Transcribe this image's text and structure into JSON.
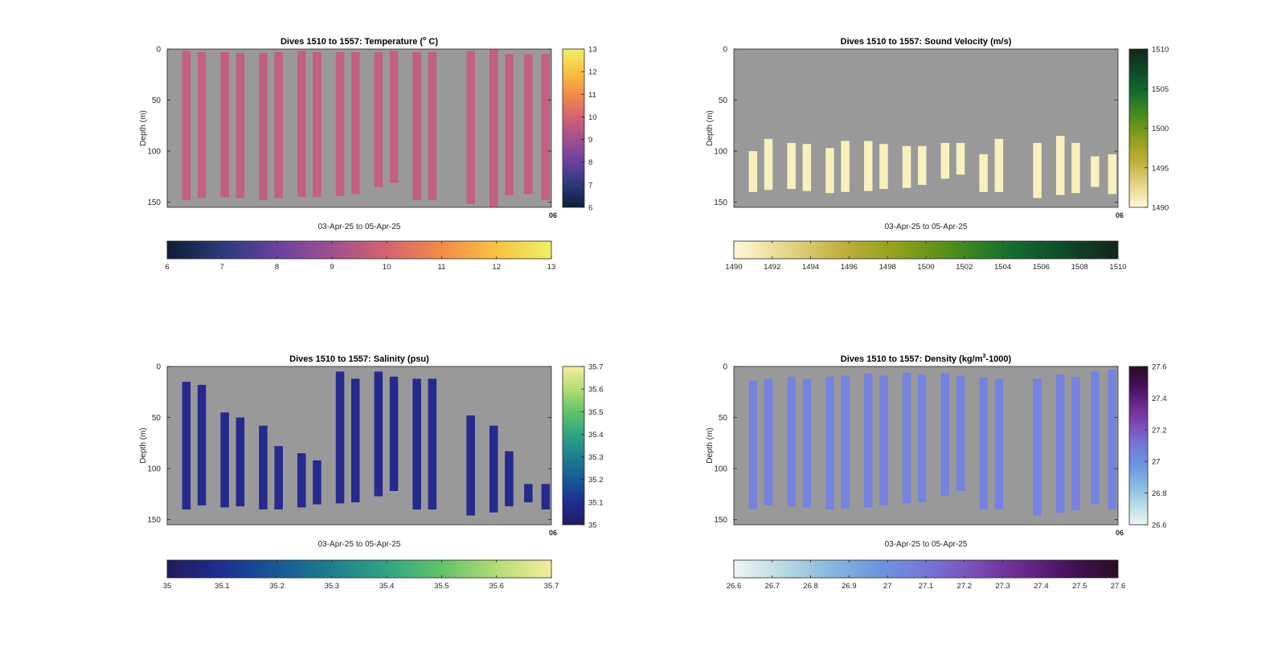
{
  "figure": {
    "background": "#ffffff",
    "axes_background": "#999999"
  },
  "chart_data": [
    {
      "type": "heatmap",
      "title": "Dives 1510 to 1557: Temperature (° C)",
      "title_parts": [
        "Dives 1510 to 1557: Temperature (",
        "o",
        " C)"
      ],
      "xlabel": "03-Apr-25 to 05-Apr-25",
      "ylabel": "Depth (m)",
      "x_tick_label": "06",
      "ylim": [
        0,
        155
      ],
      "y_ticks": [
        0,
        50,
        100,
        150
      ],
      "colorbar": {
        "min": 6,
        "max": 13,
        "side_ticks": [
          "6",
          "7",
          "8",
          "9",
          "10",
          "11",
          "12",
          "13"
        ],
        "bottom_ticks": [
          "6",
          "7",
          "8",
          "9",
          "10",
          "11",
          "12",
          "13"
        ],
        "colors": [
          "#0f1e36",
          "#2b3a7a",
          "#6a42a0",
          "#a0508f",
          "#d46270",
          "#f58a48",
          "#f8c240",
          "#eef062"
        ]
      },
      "cell_value": 9.9,
      "cell_color": "#c35f7f",
      "casts": [
        {
          "x": 0.05,
          "top": 2,
          "bottom": 148
        },
        {
          "x": 0.09,
          "top": 3,
          "bottom": 146
        },
        {
          "x": 0.15,
          "top": 3,
          "bottom": 145
        },
        {
          "x": 0.19,
          "top": 4,
          "bottom": 146
        },
        {
          "x": 0.25,
          "top": 4,
          "bottom": 148
        },
        {
          "x": 0.29,
          "top": 3,
          "bottom": 146
        },
        {
          "x": 0.35,
          "top": 2,
          "bottom": 145
        },
        {
          "x": 0.39,
          "top": 3,
          "bottom": 145
        },
        {
          "x": 0.45,
          "top": 3,
          "bottom": 144
        },
        {
          "x": 0.49,
          "top": 3,
          "bottom": 142
        },
        {
          "x": 0.55,
          "top": 3,
          "bottom": 135
        },
        {
          "x": 0.59,
          "top": 2,
          "bottom": 131
        },
        {
          "x": 0.65,
          "top": 3,
          "bottom": 148
        },
        {
          "x": 0.69,
          "top": 3,
          "bottom": 148
        },
        {
          "x": 0.79,
          "top": 2,
          "bottom": 152
        },
        {
          "x": 0.85,
          "top": 0,
          "bottom": 155
        },
        {
          "x": 0.89,
          "top": 5,
          "bottom": 143
        },
        {
          "x": 0.94,
          "top": 5,
          "bottom": 142
        },
        {
          "x": 0.985,
          "top": 5,
          "bottom": 148
        }
      ]
    },
    {
      "type": "heatmap",
      "title": "Dives 1510 to 1557: Sound Velocity (m/s)",
      "title_parts": [
        "Dives 1510 to 1557: Sound Velocity (m/s)"
      ],
      "xlabel": "03-Apr-25 to 05-Apr-25",
      "ylabel": "Depth (m)",
      "x_tick_label": "06",
      "ylim": [
        0,
        155
      ],
      "y_ticks": [
        0,
        50,
        100,
        150
      ],
      "colorbar": {
        "min": 1490,
        "max": 1510,
        "side_ticks": [
          "1490",
          "1495",
          "1500",
          "1505",
          "1510"
        ],
        "bottom_ticks": [
          "1490",
          "1492",
          "1494",
          "1496",
          "1498",
          "1500",
          "1502",
          "1504",
          "1506",
          "1508",
          "1510"
        ],
        "colors": [
          "#fff8d8",
          "#e3d486",
          "#bfae3a",
          "#8fa01a",
          "#4d8e1a",
          "#16702f",
          "#0f4a2a",
          "#132619"
        ]
      },
      "cell_value": 1490.3,
      "cell_color": "#f8f0bd",
      "casts": [
        {
          "x": 0.05,
          "top": 100,
          "bottom": 140
        },
        {
          "x": 0.09,
          "top": 88,
          "bottom": 138
        },
        {
          "x": 0.15,
          "top": 92,
          "bottom": 137
        },
        {
          "x": 0.19,
          "top": 93,
          "bottom": 139
        },
        {
          "x": 0.25,
          "top": 97,
          "bottom": 141
        },
        {
          "x": 0.29,
          "top": 90,
          "bottom": 140
        },
        {
          "x": 0.35,
          "top": 90,
          "bottom": 139
        },
        {
          "x": 0.39,
          "top": 93,
          "bottom": 137
        },
        {
          "x": 0.45,
          "top": 95,
          "bottom": 136
        },
        {
          "x": 0.49,
          "top": 95,
          "bottom": 133
        },
        {
          "x": 0.55,
          "top": 92,
          "bottom": 127
        },
        {
          "x": 0.59,
          "top": 92,
          "bottom": 123
        },
        {
          "x": 0.65,
          "top": 103,
          "bottom": 140
        },
        {
          "x": 0.69,
          "top": 88,
          "bottom": 140
        },
        {
          "x": 0.79,
          "top": 92,
          "bottom": 146
        },
        {
          "x": 0.85,
          "top": 85,
          "bottom": 143
        },
        {
          "x": 0.89,
          "top": 92,
          "bottom": 141
        },
        {
          "x": 0.94,
          "top": 105,
          "bottom": 135
        },
        {
          "x": 0.985,
          "top": 103,
          "bottom": 142
        }
      ]
    },
    {
      "type": "heatmap",
      "title": "Dives 1510 to 1557: Salinity (psu)",
      "title_parts": [
        "Dives 1510 to 1557: Salinity (psu)"
      ],
      "xlabel": "03-Apr-25 to 05-Apr-25",
      "ylabel": "Depth (m)",
      "x_tick_label": "06",
      "ylim": [
        0,
        155
      ],
      "y_ticks": [
        0,
        50,
        100,
        150
      ],
      "colorbar": {
        "min": 35,
        "max": 35.7,
        "side_ticks": [
          "35",
          "35.1",
          "35.2",
          "35.3",
          "35.4",
          "35.5",
          "35.6",
          "35.7"
        ],
        "bottom_ticks": [
          "35",
          "35.1",
          "35.2",
          "35.3",
          "35.4",
          "35.5",
          "35.6",
          "35.7"
        ],
        "colors": [
          "#231a5e",
          "#1d2f94",
          "#175a96",
          "#1e7f8e",
          "#2ea584",
          "#61c268",
          "#b2dc73",
          "#f5ed9c"
        ]
      },
      "cell_value": 35.03,
      "cell_color": "#262a8e",
      "casts": [
        {
          "x": 0.05,
          "top": 15,
          "bottom": 140
        },
        {
          "x": 0.09,
          "top": 18,
          "bottom": 136
        },
        {
          "x": 0.15,
          "top": 45,
          "bottom": 138
        },
        {
          "x": 0.19,
          "top": 50,
          "bottom": 137
        },
        {
          "x": 0.25,
          "top": 58,
          "bottom": 140
        },
        {
          "x": 0.29,
          "top": 78,
          "bottom": 140
        },
        {
          "x": 0.35,
          "top": 85,
          "bottom": 138
        },
        {
          "x": 0.39,
          "top": 92,
          "bottom": 135
        },
        {
          "x": 0.45,
          "top": 5,
          "bottom": 134
        },
        {
          "x": 0.49,
          "top": 12,
          "bottom": 133
        },
        {
          "x": 0.55,
          "top": 5,
          "bottom": 127
        },
        {
          "x": 0.59,
          "top": 10,
          "bottom": 122
        },
        {
          "x": 0.65,
          "top": 12,
          "bottom": 140
        },
        {
          "x": 0.69,
          "top": 12,
          "bottom": 140
        },
        {
          "x": 0.79,
          "top": 48,
          "bottom": 146
        },
        {
          "x": 0.85,
          "top": 58,
          "bottom": 143
        },
        {
          "x": 0.89,
          "top": 83,
          "bottom": 137
        },
        {
          "x": 0.94,
          "top": 115,
          "bottom": 133
        },
        {
          "x": 0.985,
          "top": 115,
          "bottom": 140
        }
      ]
    },
    {
      "type": "heatmap",
      "title": "Dives 1510 to 1557: Density (kg/m³-1000)",
      "title_parts": [
        "Dives 1510 to 1557: Density (kg/m",
        "3",
        "-1000)"
      ],
      "xlabel": "03-Apr-25 to 05-Apr-25",
      "ylabel": "Depth (m)",
      "x_tick_label": "06",
      "ylim": [
        0,
        155
      ],
      "y_ticks": [
        0,
        50,
        100,
        150
      ],
      "colorbar": {
        "min": 26.6,
        "max": 27.6,
        "side_ticks": [
          "26.6",
          "26.8",
          "27",
          "27.2",
          "27.4",
          "27.6"
        ],
        "bottom_ticks": [
          "26.6",
          "26.7",
          "26.8",
          "26.9",
          "27",
          "27.1",
          "27.2",
          "27.3",
          "27.4",
          "27.5",
          "27.6"
        ],
        "colors": [
          "#eef5f4",
          "#b9dbe4",
          "#86b8e0",
          "#6c95e0",
          "#7577d8",
          "#7c4dba",
          "#6c2990",
          "#45125c",
          "#2a0d22"
        ]
      },
      "cell_value": 26.96,
      "cell_color": "#7582e0",
      "casts": [
        {
          "x": 0.05,
          "top": 14,
          "bottom": 140
        },
        {
          "x": 0.09,
          "top": 12,
          "bottom": 136
        },
        {
          "x": 0.15,
          "top": 10,
          "bottom": 137
        },
        {
          "x": 0.19,
          "top": 12,
          "bottom": 138
        },
        {
          "x": 0.25,
          "top": 10,
          "bottom": 140
        },
        {
          "x": 0.29,
          "top": 9,
          "bottom": 139
        },
        {
          "x": 0.35,
          "top": 7,
          "bottom": 138
        },
        {
          "x": 0.39,
          "top": 9,
          "bottom": 136
        },
        {
          "x": 0.45,
          "top": 6,
          "bottom": 134
        },
        {
          "x": 0.49,
          "top": 8,
          "bottom": 133
        },
        {
          "x": 0.55,
          "top": 7,
          "bottom": 127
        },
        {
          "x": 0.59,
          "top": 9,
          "bottom": 122
        },
        {
          "x": 0.65,
          "top": 11,
          "bottom": 140
        },
        {
          "x": 0.69,
          "top": 12,
          "bottom": 140
        },
        {
          "x": 0.79,
          "top": 12,
          "bottom": 146
        },
        {
          "x": 0.85,
          "top": 8,
          "bottom": 143
        },
        {
          "x": 0.89,
          "top": 10,
          "bottom": 141
        },
        {
          "x": 0.94,
          "top": 5,
          "bottom": 135
        },
        {
          "x": 0.985,
          "top": 3,
          "bottom": 140
        }
      ]
    }
  ]
}
